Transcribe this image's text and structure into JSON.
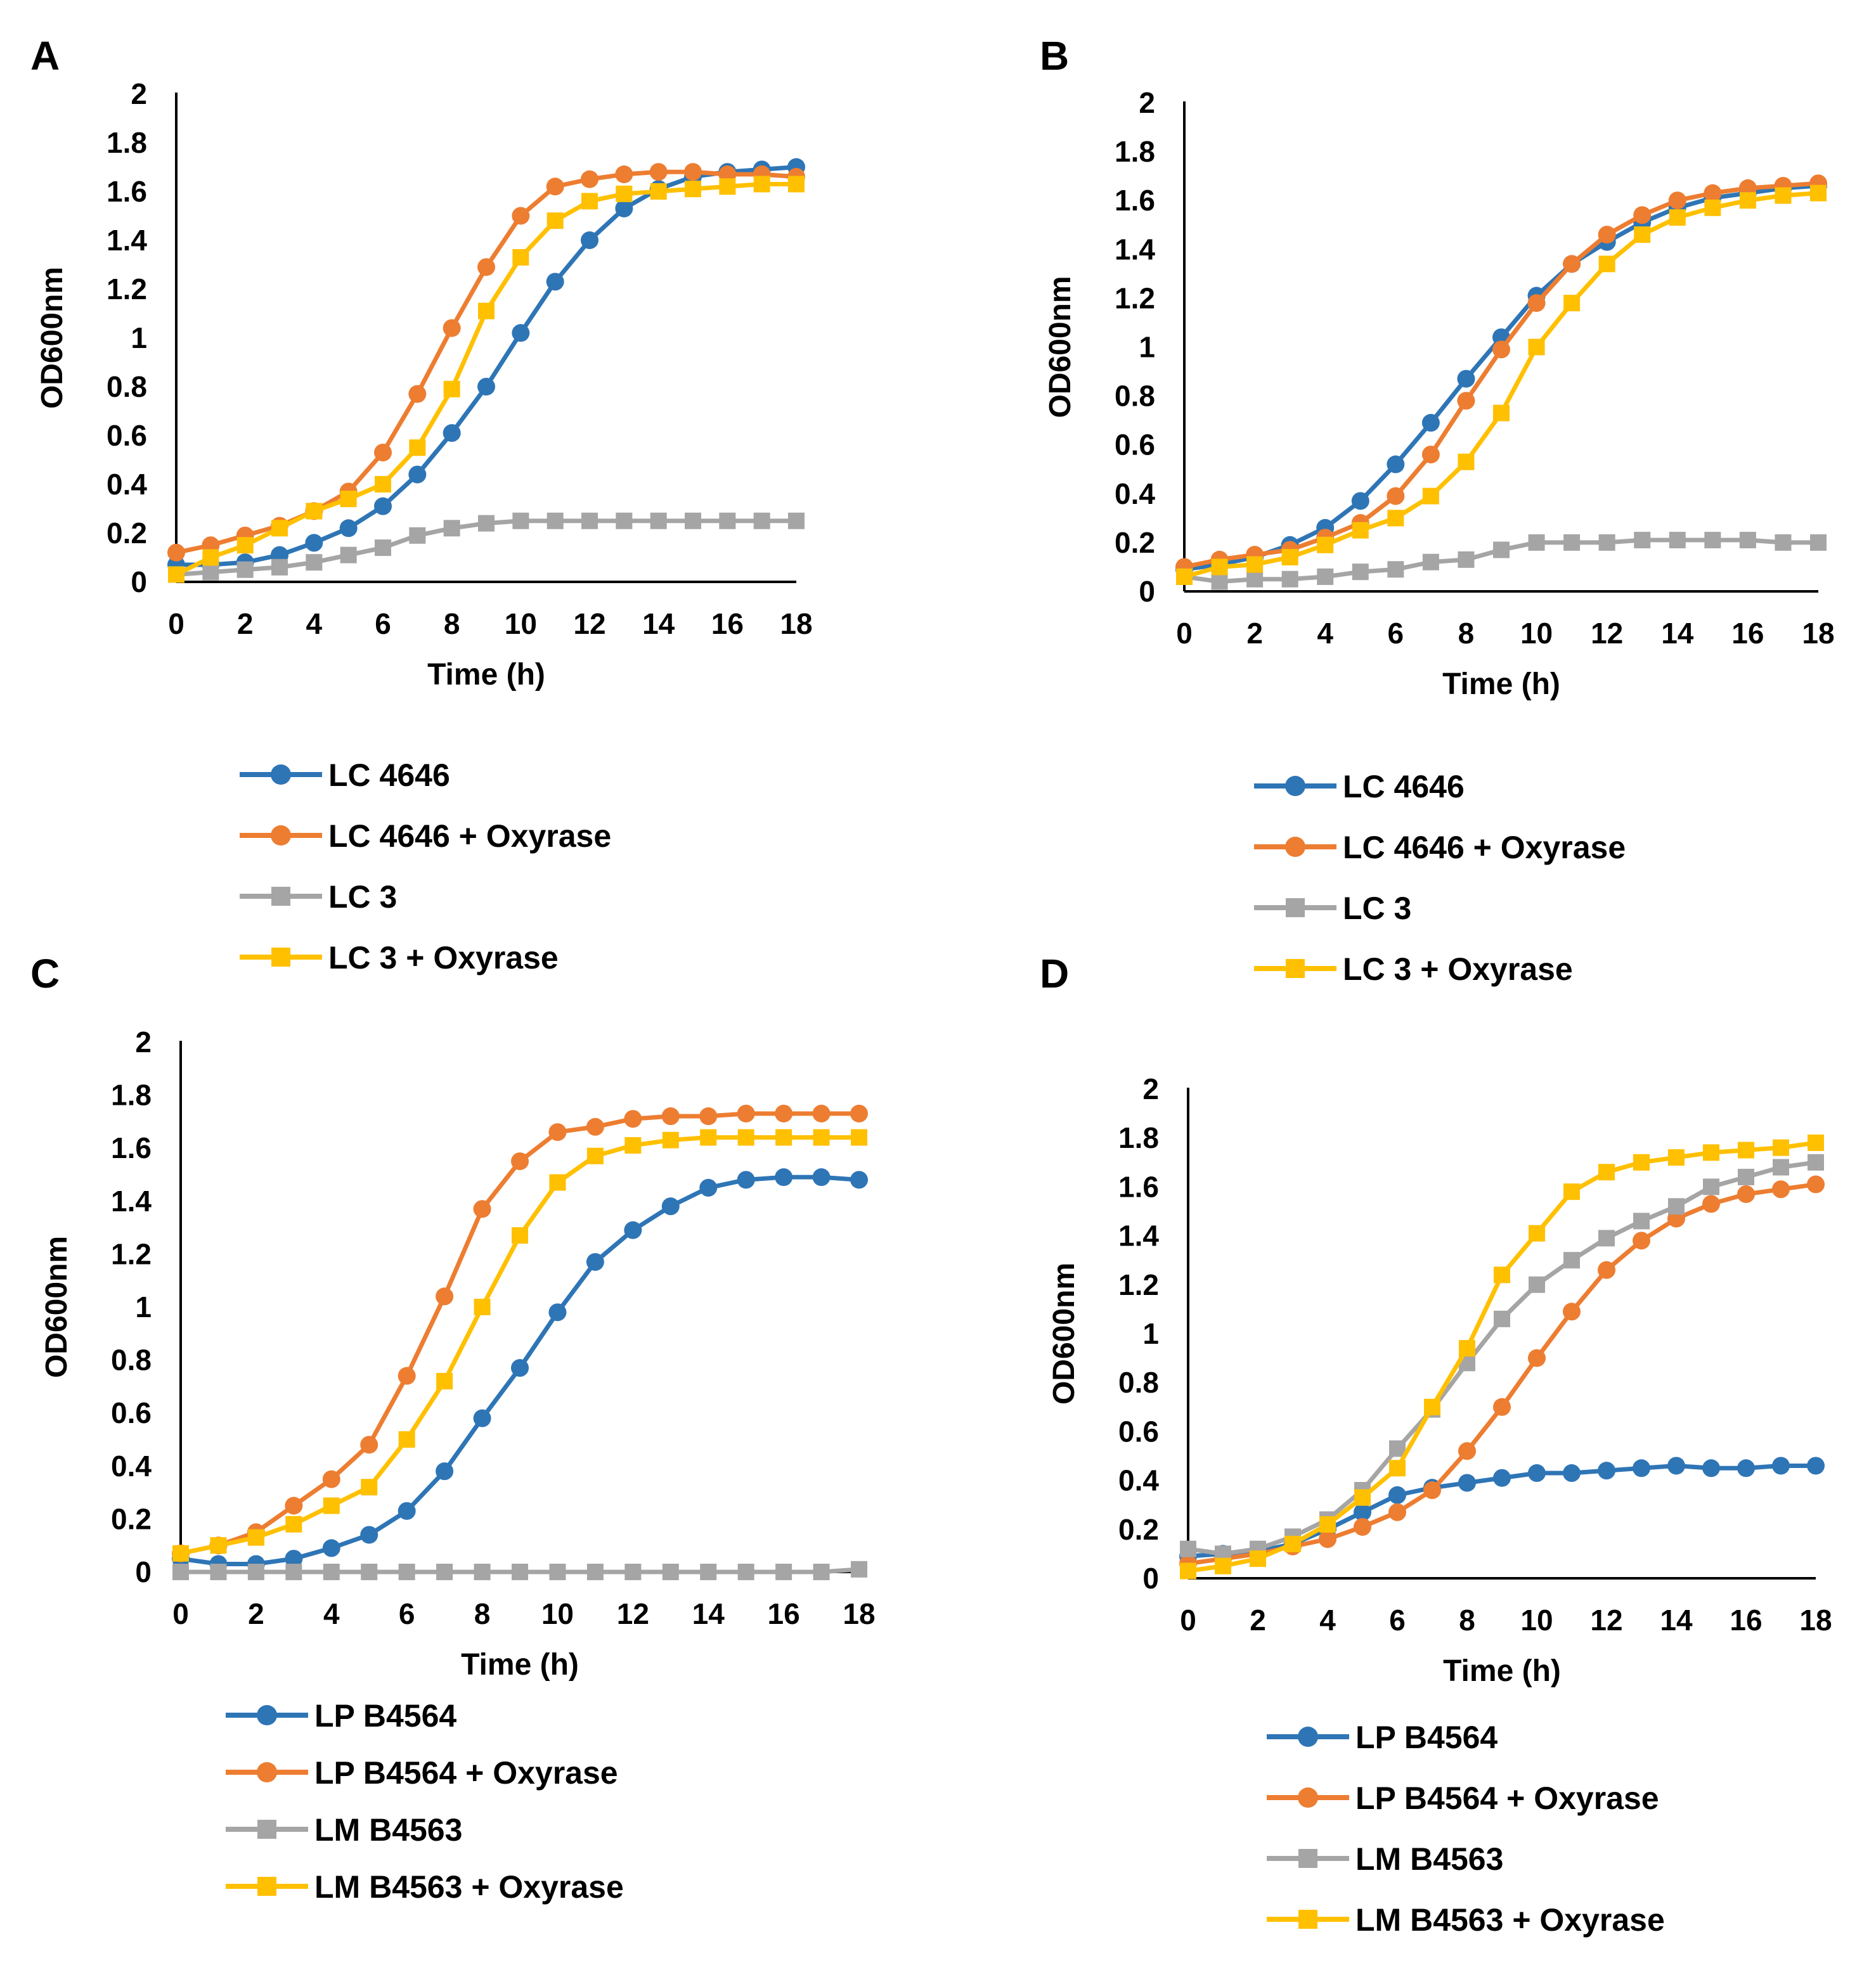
{
  "series_styles": [
    {
      "color": "#2E75B6",
      "marker": "circle"
    },
    {
      "color": "#ED7D31",
      "marker": "circle"
    },
    {
      "color": "#A5A5A5",
      "marker": "square"
    },
    {
      "color": "#FFC000",
      "marker": "square"
    }
  ],
  "chart_data": [
    {
      "type": "line",
      "panel": "A",
      "title": "",
      "xlabel": "Time (h)",
      "ylabel": "OD600nm",
      "xlim": [
        0,
        18
      ],
      "ylim": [
        0,
        2
      ],
      "xticks": [
        "0",
        "2",
        "4",
        "6",
        "8",
        "10",
        "12",
        "14",
        "16",
        "18"
      ],
      "yticks": [
        "0",
        "0.2",
        "0.4",
        "0.6",
        "0.8",
        "1",
        "1.2",
        "1.4",
        "1.6",
        "1.8",
        "2"
      ],
      "x": [
        0,
        1,
        2,
        3,
        4,
        5,
        6,
        7,
        8,
        9,
        10,
        11,
        12,
        13,
        14,
        15,
        16,
        17,
        18
      ],
      "series": [
        {
          "name": "LC 4646",
          "values": [
            0.07,
            0.07,
            0.08,
            0.11,
            0.16,
            0.22,
            0.31,
            0.44,
            0.61,
            0.8,
            1.02,
            1.23,
            1.4,
            1.53,
            1.61,
            1.66,
            1.68,
            1.69,
            1.7
          ]
        },
        {
          "name": "LC 4646 + Oxyrase",
          "values": [
            0.12,
            0.15,
            0.19,
            0.23,
            0.29,
            0.37,
            0.53,
            0.77,
            1.04,
            1.29,
            1.5,
            1.62,
            1.65,
            1.67,
            1.68,
            1.68,
            1.67,
            1.67,
            1.66
          ]
        },
        {
          "name": "LC 3",
          "values": [
            0.03,
            0.04,
            0.05,
            0.06,
            0.08,
            0.11,
            0.14,
            0.19,
            0.22,
            0.24,
            0.25,
            0.25,
            0.25,
            0.25,
            0.25,
            0.25,
            0.25,
            0.25,
            0.25
          ]
        },
        {
          "name": "LC 3 + Oxyrase",
          "values": [
            0.03,
            0.1,
            0.15,
            0.22,
            0.29,
            0.34,
            0.4,
            0.55,
            0.79,
            1.11,
            1.33,
            1.48,
            1.56,
            1.59,
            1.6,
            1.61,
            1.62,
            1.63,
            1.63
          ]
        }
      ]
    },
    {
      "type": "line",
      "panel": "B",
      "title": "",
      "xlabel": "Time (h)",
      "ylabel": "OD600nm",
      "xlim": [
        0,
        18
      ],
      "ylim": [
        0,
        2
      ],
      "xticks": [
        "0",
        "2",
        "4",
        "6",
        "8",
        "10",
        "12",
        "14",
        "16",
        "18"
      ],
      "yticks": [
        "0",
        "0.2",
        "0.4",
        "0.6",
        "0.8",
        "1",
        "1.2",
        "1.4",
        "1.6",
        "1.8",
        "2"
      ],
      "x": [
        0,
        1,
        2,
        3,
        4,
        5,
        6,
        7,
        8,
        9,
        10,
        11,
        12,
        13,
        14,
        15,
        16,
        17,
        18
      ],
      "series": [
        {
          "name": "LC 4646",
          "values": [
            0.09,
            0.11,
            0.14,
            0.19,
            0.26,
            0.37,
            0.52,
            0.69,
            0.87,
            1.04,
            1.21,
            1.34,
            1.43,
            1.51,
            1.57,
            1.61,
            1.63,
            1.65,
            1.66
          ]
        },
        {
          "name": "LC 4646 + Oxyrase",
          "values": [
            0.1,
            0.13,
            0.15,
            0.17,
            0.22,
            0.28,
            0.39,
            0.56,
            0.78,
            0.99,
            1.18,
            1.34,
            1.46,
            1.54,
            1.6,
            1.63,
            1.65,
            1.66,
            1.67
          ]
        },
        {
          "name": "LC 3",
          "values": [
            0.06,
            0.04,
            0.05,
            0.05,
            0.06,
            0.08,
            0.09,
            0.12,
            0.13,
            0.17,
            0.2,
            0.2,
            0.2,
            0.21,
            0.21,
            0.21,
            0.21,
            0.2,
            0.2
          ]
        },
        {
          "name": "LC 3 + Oxyrase",
          "values": [
            0.06,
            0.1,
            0.11,
            0.14,
            0.19,
            0.25,
            0.3,
            0.39,
            0.53,
            0.73,
            1.0,
            1.18,
            1.34,
            1.46,
            1.53,
            1.57,
            1.6,
            1.62,
            1.63
          ]
        }
      ]
    },
    {
      "type": "line",
      "panel": "C",
      "title": "",
      "xlabel": "Time (h)",
      "ylabel": "OD600nm",
      "xlim": [
        0,
        18
      ],
      "ylim": [
        0,
        2
      ],
      "xticks": [
        "0",
        "2",
        "4",
        "6",
        "8",
        "10",
        "12",
        "14",
        "16",
        "18"
      ],
      "yticks": [
        "0",
        "0.2",
        "0.4",
        "0.6",
        "0.8",
        "1",
        "1.2",
        "1.4",
        "1.6",
        "1.8",
        "2"
      ],
      "x": [
        0,
        1,
        2,
        3,
        4,
        5,
        6,
        7,
        8,
        9,
        10,
        11,
        12,
        13,
        14,
        15,
        16,
        17,
        18
      ],
      "series": [
        {
          "name": "LP B4564",
          "values": [
            0.05,
            0.03,
            0.03,
            0.05,
            0.09,
            0.14,
            0.23,
            0.38,
            0.58,
            0.77,
            0.98,
            1.17,
            1.29,
            1.38,
            1.45,
            1.48,
            1.49,
            1.49,
            1.48
          ]
        },
        {
          "name": "LP B4564 + Oxyrase",
          "values": [
            0.07,
            0.1,
            0.15,
            0.25,
            0.35,
            0.48,
            0.74,
            1.04,
            1.37,
            1.55,
            1.66,
            1.68,
            1.71,
            1.72,
            1.72,
            1.73,
            1.73,
            1.73,
            1.73
          ]
        },
        {
          "name": "LM B4563",
          "values": [
            0.0,
            0.0,
            0.0,
            0.0,
            0.0,
            0.0,
            0.0,
            0.0,
            0.0,
            0.0,
            0.0,
            0.0,
            0.0,
            0.0,
            0.0,
            0.0,
            0.0,
            0.0,
            0.01
          ]
        },
        {
          "name": "LM B4563 + Oxyrase",
          "values": [
            0.07,
            0.1,
            0.13,
            0.18,
            0.25,
            0.32,
            0.5,
            0.72,
            1.0,
            1.27,
            1.47,
            1.57,
            1.61,
            1.63,
            1.64,
            1.64,
            1.64,
            1.64,
            1.64
          ]
        }
      ]
    },
    {
      "type": "line",
      "panel": "D",
      "title": "",
      "xlabel": "Time (h)",
      "ylabel": "OD600nm",
      "xlim": [
        0,
        18
      ],
      "ylim": [
        0,
        2
      ],
      "xticks": [
        "0",
        "2",
        "4",
        "6",
        "8",
        "10",
        "12",
        "14",
        "16",
        "18"
      ],
      "yticks": [
        "0",
        "0.2",
        "0.4",
        "0.6",
        "0.8",
        "1",
        "1.2",
        "1.4",
        "1.6",
        "1.8",
        "2"
      ],
      "x": [
        0,
        1,
        2,
        3,
        4,
        5,
        6,
        7,
        8,
        9,
        10,
        11,
        12,
        13,
        14,
        15,
        16,
        17,
        18
      ],
      "series": [
        {
          "name": "LP B4564",
          "values": [
            0.09,
            0.1,
            0.11,
            0.14,
            0.2,
            0.27,
            0.34,
            0.37,
            0.39,
            0.41,
            0.43,
            0.43,
            0.44,
            0.45,
            0.46,
            0.45,
            0.45,
            0.46,
            0.46
          ]
        },
        {
          "name": "LP B4564 + Oxyrase",
          "values": [
            0.06,
            0.08,
            0.1,
            0.13,
            0.16,
            0.21,
            0.27,
            0.36,
            0.52,
            0.7,
            0.9,
            1.09,
            1.26,
            1.38,
            1.47,
            1.53,
            1.57,
            1.59,
            1.61
          ]
        },
        {
          "name": "LM B4563",
          "values": [
            0.12,
            0.1,
            0.12,
            0.17,
            0.24,
            0.36,
            0.53,
            0.69,
            0.88,
            1.06,
            1.2,
            1.3,
            1.39,
            1.46,
            1.52,
            1.6,
            1.64,
            1.68,
            1.7
          ]
        },
        {
          "name": "LM B4563 + Oxyrase",
          "values": [
            0.03,
            0.05,
            0.08,
            0.14,
            0.22,
            0.33,
            0.45,
            0.7,
            0.94,
            1.24,
            1.41,
            1.58,
            1.66,
            1.7,
            1.72,
            1.74,
            1.75,
            1.76,
            1.78
          ]
        }
      ]
    }
  ]
}
